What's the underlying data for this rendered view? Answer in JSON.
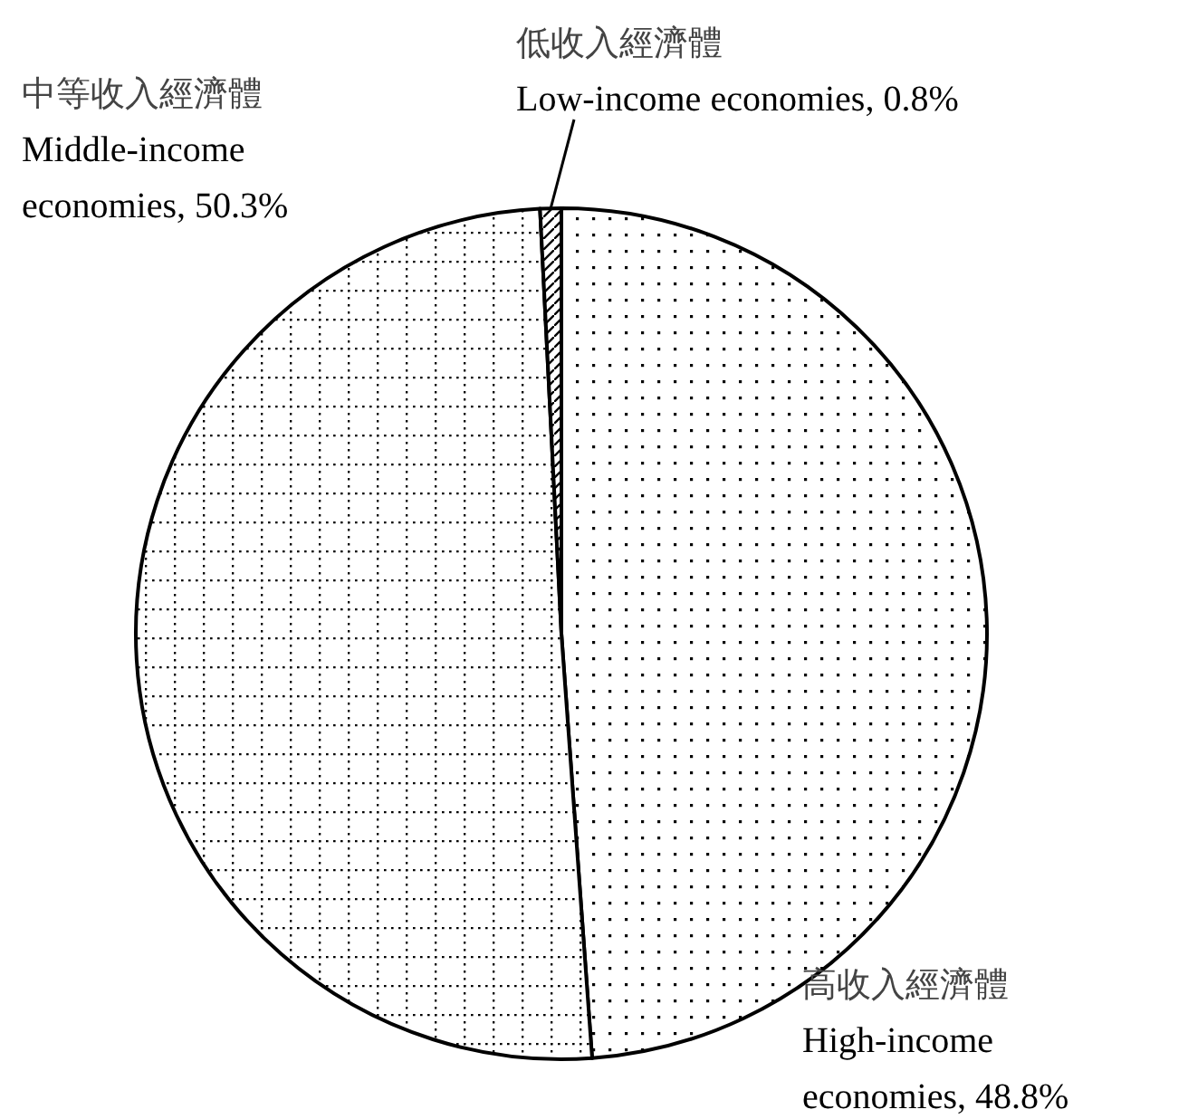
{
  "chart_data": {
    "type": "pie",
    "categories": [
      "高收入經濟體",
      "中等收入經濟體",
      "低收入經濟體"
    ],
    "values": [
      48.8,
      50.3,
      0.8
    ],
    "value_labels": [
      "High-income economies, 48.8%",
      "Middle-income economies, 50.3%",
      "Low-income economies, 0.8%"
    ]
  }
}
